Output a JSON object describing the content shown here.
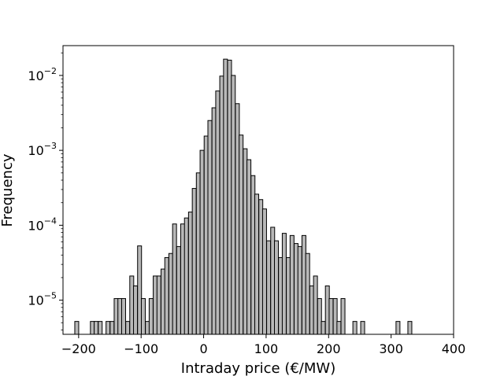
{
  "chart_data": {
    "type": "bar",
    "xlabel": "Intraday price (€/MW)",
    "ylabel": "Frequency",
    "xlim": [
      -225,
      400
    ],
    "ylim": [
      3.5e-06,
      0.025
    ],
    "yscale": "log",
    "grid": false,
    "bin_width": 6.3,
    "bar_fill": "#b8b8b8",
    "bar_edge": "#000000",
    "x_ticks": [
      {
        "value": -200,
        "label": "−200"
      },
      {
        "value": -100,
        "label": "−100"
      },
      {
        "value": 0,
        "label": "0"
      },
      {
        "value": 100,
        "label": "100"
      },
      {
        "value": 200,
        "label": "200"
      },
      {
        "value": 300,
        "label": "300"
      },
      {
        "value": 400,
        "label": "400"
      }
    ],
    "y_ticks": [
      {
        "value": 1e-05,
        "base": "10",
        "exp": "−5"
      },
      {
        "value": 0.0001,
        "base": "10",
        "exp": "−4"
      },
      {
        "value": 0.001,
        "base": "10",
        "exp": "−3"
      },
      {
        "value": 0.01,
        "base": "10",
        "exp": "−2"
      }
    ],
    "bins": [
      {
        "x": -203.0,
        "freq": 5.2e-06
      },
      {
        "x": -178.0,
        "freq": 5.2e-06
      },
      {
        "x": -172.0,
        "freq": 5.2e-06
      },
      {
        "x": -165.5,
        "freq": 5.2e-06
      },
      {
        "x": -153.0,
        "freq": 5.2e-06
      },
      {
        "x": -146.5,
        "freq": 5.2e-06
      },
      {
        "x": -140.0,
        "freq": 1.05e-05
      },
      {
        "x": -134.0,
        "freq": 1.05e-05
      },
      {
        "x": -128.0,
        "freq": 1.05e-05
      },
      {
        "x": -121.5,
        "freq": 5.2e-06
      },
      {
        "x": -115.0,
        "freq": 2.1e-05
      },
      {
        "x": -109.0,
        "freq": 1.55e-05
      },
      {
        "x": -102.5,
        "freq": 5.3e-05
      },
      {
        "x": -96.5,
        "freq": 1.05e-05
      },
      {
        "x": -90.0,
        "freq": 5.2e-06
      },
      {
        "x": -84.0,
        "freq": 1.05e-05
      },
      {
        "x": -77.5,
        "freq": 2.1e-05
      },
      {
        "x": -71.5,
        "freq": 2.1e-05
      },
      {
        "x": -65.0,
        "freq": 2.6e-05
      },
      {
        "x": -59.0,
        "freq": 3.7e-05
      },
      {
        "x": -52.5,
        "freq": 4.2e-05
      },
      {
        "x": -46.5,
        "freq": 0.000104
      },
      {
        "x": -40.0,
        "freq": 5.2e-05
      },
      {
        "x": -33.5,
        "freq": 0.000104
      },
      {
        "x": -27.5,
        "freq": 0.000125
      },
      {
        "x": -21.0,
        "freq": 0.00015
      },
      {
        "x": -15.0,
        "freq": 0.00031
      },
      {
        "x": -8.5,
        "freq": 0.0005
      },
      {
        "x": -2.5,
        "freq": 0.001
      },
      {
        "x": 4.0,
        "freq": 0.00155
      },
      {
        "x": 10.0,
        "freq": 0.0025
      },
      {
        "x": 16.5,
        "freq": 0.0037
      },
      {
        "x": 22.5,
        "freq": 0.0062
      },
      {
        "x": 29.0,
        "freq": 0.0098
      },
      {
        "x": 35.0,
        "freq": 0.0165
      },
      {
        "x": 41.5,
        "freq": 0.016
      },
      {
        "x": 47.5,
        "freq": 0.01
      },
      {
        "x": 54.0,
        "freq": 0.0042
      },
      {
        "x": 60.0,
        "freq": 0.0016
      },
      {
        "x": 66.5,
        "freq": 0.00105
      },
      {
        "x": 72.5,
        "freq": 0.00075
      },
      {
        "x": 79.0,
        "freq": 0.00046
      },
      {
        "x": 85.0,
        "freq": 0.00026
      },
      {
        "x": 91.5,
        "freq": 0.00022
      },
      {
        "x": 97.5,
        "freq": 0.000165
      },
      {
        "x": 104.0,
        "freq": 6.2e-05
      },
      {
        "x": 110.5,
        "freq": 9.4e-05
      },
      {
        "x": 116.5,
        "freq": 6.2e-05
      },
      {
        "x": 123.0,
        "freq": 3.7e-05
      },
      {
        "x": 129.0,
        "freq": 7.8e-05
      },
      {
        "x": 135.5,
        "freq": 3.7e-05
      },
      {
        "x": 141.5,
        "freq": 7.3e-05
      },
      {
        "x": 148.0,
        "freq": 5.7e-05
      },
      {
        "x": 154.0,
        "freq": 5.2e-05
      },
      {
        "x": 160.5,
        "freq": 7.3e-05
      },
      {
        "x": 166.5,
        "freq": 4.2e-05
      },
      {
        "x": 173.0,
        "freq": 1.55e-05
      },
      {
        "x": 179.0,
        "freq": 2.1e-05
      },
      {
        "x": 185.5,
        "freq": 1.05e-05
      },
      {
        "x": 191.5,
        "freq": 5.2e-06
      },
      {
        "x": 198.0,
        "freq": 1.55e-05
      },
      {
        "x": 204.0,
        "freq": 1.05e-05
      },
      {
        "x": 210.5,
        "freq": 1.05e-05
      },
      {
        "x": 216.5,
        "freq": 5.2e-06
      },
      {
        "x": 223.0,
        "freq": 1.05e-05
      },
      {
        "x": 242.0,
        "freq": 5.2e-06
      },
      {
        "x": 254.5,
        "freq": 5.2e-06
      },
      {
        "x": 311.0,
        "freq": 5.2e-06
      },
      {
        "x": 330.0,
        "freq": 5.2e-06
      }
    ]
  }
}
